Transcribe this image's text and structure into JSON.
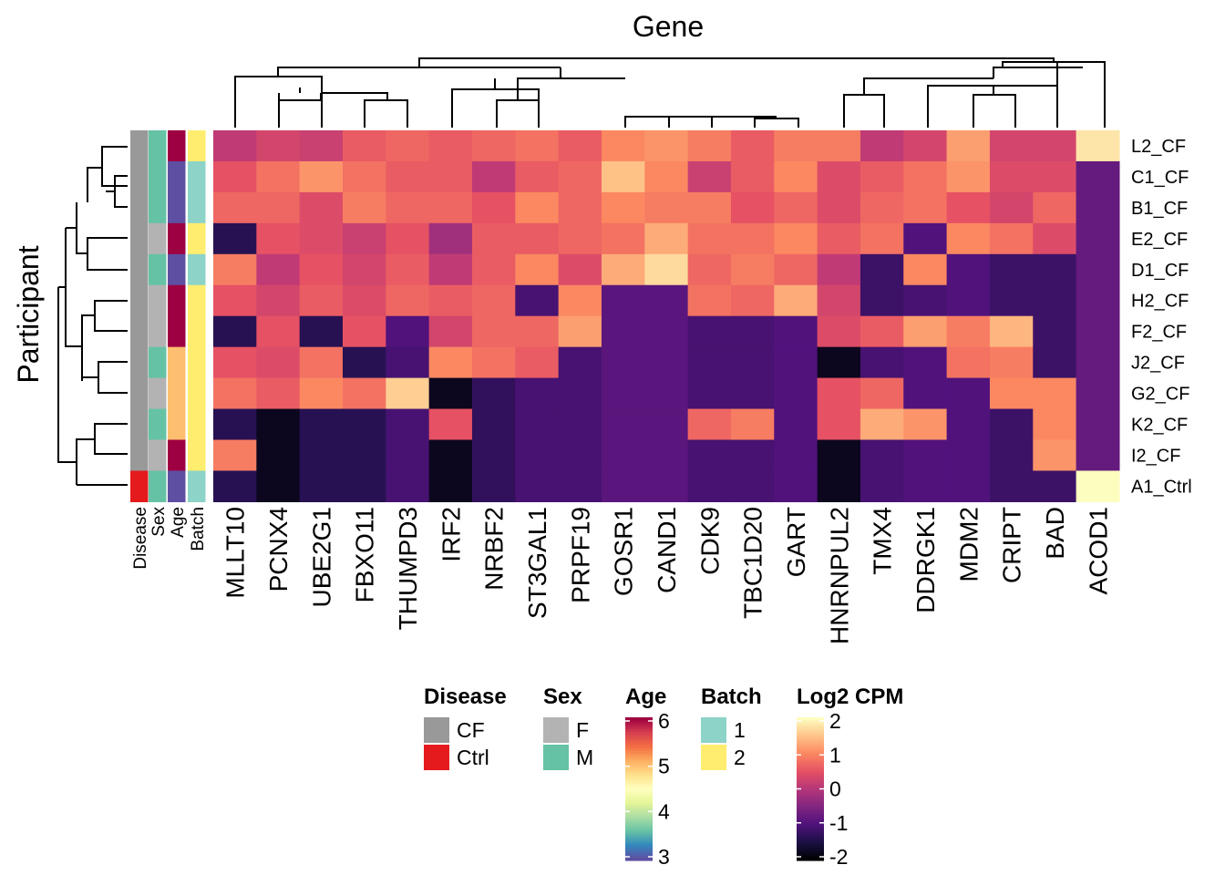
{
  "chart_data": {
    "type": "heatmap",
    "title": "Gene",
    "xlabel": "Gene",
    "ylabel": "Participant",
    "genes": [
      "MLLT10",
      "PCNX4",
      "UBE2G1",
      "FBXO11",
      "THUMPD3",
      "IRF2",
      "NRBF2",
      "ST3GAL1",
      "PRPF19",
      "GOSR1",
      "CAND1",
      "CDK9",
      "TBC1D20",
      "GART",
      "HNRNPUL2",
      "TMX4",
      "DDRGK1",
      "MDM2",
      "CRIPT",
      "BAD",
      "ACOD1"
    ],
    "participants": [
      "L2_CF",
      "C1_CF",
      "B1_CF",
      "E2_CF",
      "D1_CF",
      "H2_CF",
      "F2_CF",
      "J2_CF",
      "G2_CF",
      "K2_CF",
      "I2_CF",
      "A1_Ctrl"
    ],
    "values": [
      [
        0.1,
        0.3,
        0.2,
        0.6,
        0.7,
        0.6,
        0.7,
        0.8,
        0.6,
        1.0,
        1.1,
        0.9,
        0.6,
        0.9,
        0.9,
        0.1,
        0.3,
        1.2,
        0.3,
        0.3,
        1.8
      ],
      [
        0.5,
        0.8,
        1.1,
        0.8,
        0.6,
        0.6,
        0.1,
        0.6,
        0.7,
        1.5,
        1.0,
        0.2,
        0.6,
        1.0,
        0.4,
        0.6,
        0.8,
        1.1,
        0.4,
        0.4,
        -0.8
      ],
      [
        0.7,
        0.7,
        0.4,
        0.9,
        0.7,
        0.7,
        0.5,
        1.0,
        0.7,
        1.0,
        0.9,
        0.9,
        0.5,
        0.7,
        0.4,
        0.7,
        0.8,
        0.5,
        0.3,
        0.7,
        -0.8
      ],
      [
        -1.4,
        0.5,
        0.4,
        0.2,
        0.5,
        -0.2,
        0.6,
        0.6,
        0.7,
        0.8,
        1.3,
        0.8,
        0.8,
        1.0,
        0.6,
        0.8,
        -1.0,
        1.0,
        0.8,
        0.4,
        -0.8
      ],
      [
        0.9,
        0.1,
        0.5,
        0.3,
        0.6,
        0.1,
        0.6,
        1.0,
        0.4,
        1.3,
        1.7,
        0.7,
        0.9,
        0.7,
        0.1,
        -1.2,
        1.0,
        -1.0,
        -1.2,
        -1.2,
        -0.8
      ],
      [
        0.5,
        0.3,
        0.6,
        0.4,
        0.7,
        0.6,
        0.7,
        -1.1,
        1.0,
        -0.9,
        -0.9,
        0.8,
        0.7,
        1.3,
        0.3,
        -1.2,
        -1.1,
        -1.0,
        -1.2,
        -1.2,
        -0.8
      ],
      [
        -1.4,
        0.5,
        -1.4,
        0.5,
        -1.0,
        0.3,
        0.7,
        0.7,
        1.2,
        -0.9,
        -0.9,
        -1.1,
        -1.1,
        -1.0,
        0.4,
        0.6,
        1.2,
        0.9,
        1.4,
        -1.2,
        -0.8
      ],
      [
        0.5,
        0.4,
        0.8,
        -1.4,
        -1.1,
        1.0,
        0.8,
        0.6,
        -1.1,
        -0.9,
        -0.9,
        -1.1,
        -1.1,
        -1.0,
        -1.8,
        -1.1,
        -1.0,
        0.8,
        0.9,
        -1.2,
        -0.8
      ],
      [
        0.8,
        0.6,
        1.0,
        0.8,
        1.6,
        -1.8,
        -1.3,
        -1.1,
        -1.1,
        -0.9,
        -0.9,
        -1.1,
        -1.1,
        -1.0,
        0.5,
        0.7,
        -1.0,
        -1.0,
        1.0,
        1.0,
        -0.8
      ],
      [
        -1.4,
        -1.8,
        -1.4,
        -1.4,
        -1.1,
        0.5,
        -1.3,
        -1.1,
        -1.1,
        -0.9,
        -0.9,
        0.7,
        0.9,
        -1.0,
        0.5,
        1.3,
        1.1,
        -1.0,
        -1.2,
        1.0,
        -0.8
      ],
      [
        0.9,
        -1.8,
        -1.4,
        -1.4,
        -1.1,
        -1.8,
        -1.3,
        -1.1,
        -1.1,
        -0.9,
        -0.9,
        -1.1,
        -1.1,
        -1.0,
        -1.8,
        -1.1,
        -1.0,
        -1.0,
        -1.2,
        1.1,
        -0.8
      ],
      [
        -1.4,
        -1.8,
        -1.4,
        -1.4,
        -1.1,
        -1.8,
        -1.3,
        -1.1,
        -1.1,
        -0.9,
        -0.9,
        -1.1,
        -1.1,
        -1.0,
        -1.8,
        -1.1,
        -1.0,
        -1.0,
        -1.2,
        -1.2,
        2.2
      ]
    ],
    "annotation_columns": [
      "Disease",
      "Sex",
      "Age",
      "Batch"
    ],
    "annotations": {
      "Disease": [
        "CF",
        "CF",
        "CF",
        "CF",
        "CF",
        "CF",
        "CF",
        "CF",
        "CF",
        "CF",
        "CF",
        "Ctrl"
      ],
      "Sex": [
        "M",
        "M",
        "M",
        "F",
        "M",
        "F",
        "F",
        "M",
        "F",
        "M",
        "F",
        "M"
      ],
      "Age": [
        6,
        3,
        3,
        6,
        3,
        6,
        6,
        5,
        5,
        5,
        6,
        3
      ],
      "Batch": [
        "2",
        "1",
        "1",
        "2",
        "1",
        "2",
        "2",
        "2",
        "2",
        "2",
        "2",
        "1"
      ]
    },
    "legends": {
      "Disease": {
        "title": "Disease",
        "items": [
          {
            "label": "CF",
            "color": "#999999"
          },
          {
            "label": "Ctrl",
            "color": "#E41A1C"
          }
        ]
      },
      "Sex": {
        "title": "Sex",
        "items": [
          {
            "label": "F",
            "color": "#B3B3B3"
          },
          {
            "label": "M",
            "color": "#66C2A5"
          }
        ]
      },
      "Age": {
        "title": "Age",
        "ticks": [
          "6",
          "5",
          "4",
          "3"
        ],
        "range": [
          3,
          6
        ]
      },
      "Batch": {
        "title": "Batch",
        "items": [
          {
            "label": "1",
            "color": "#8DD3C7"
          },
          {
            "label": "2",
            "color": "#FFED6F"
          }
        ]
      },
      "Log2 CPM": {
        "title": "Log2 CPM",
        "ticks": [
          "2",
          "1",
          "0",
          "-1",
          "-2"
        ],
        "range": [
          -2,
          2
        ]
      }
    },
    "colors": {
      "age_scale": [
        "#5E4FA2",
        "#3288BD",
        "#66C2A5",
        "#ABDDA4",
        "#E6F598",
        "#FFFFBF",
        "#FEE08B",
        "#FDAE61",
        "#F46D43",
        "#D53E4F",
        "#9E0142"
      ],
      "value_scale": [
        "#000004",
        "#1D1147",
        "#51127C",
        "#822681",
        "#B63679",
        "#E65164",
        "#FB8861",
        "#FEC287",
        "#FCFDBF"
      ]
    }
  }
}
